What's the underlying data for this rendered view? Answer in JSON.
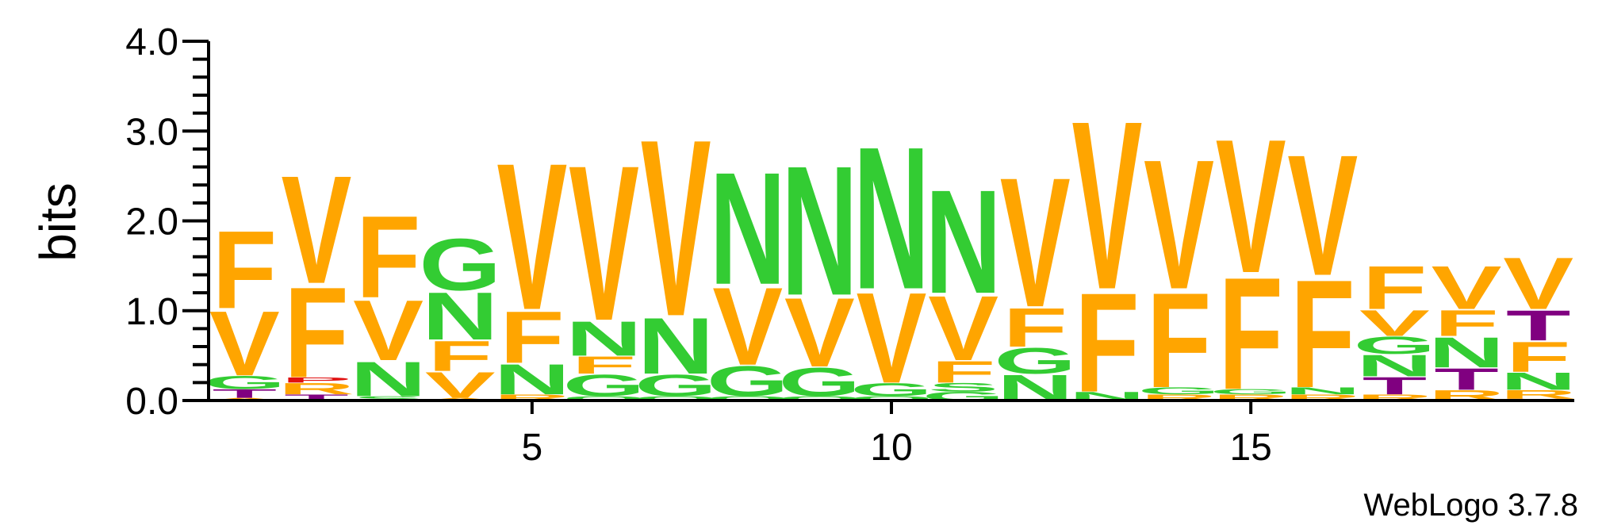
{
  "chart_data": {
    "type": "sequence-logo",
    "ylabel": "bits",
    "ylim": [
      0,
      4.0
    ],
    "y_ticks": [
      "0.0",
      "1.0",
      "2.0",
      "3.0",
      "4.0"
    ],
    "x_ticks": [
      "5",
      "10",
      "15"
    ],
    "x_tick_positions": [
      5,
      10,
      15
    ],
    "positions": 19,
    "credit": "WebLogo 3.7.8",
    "colors": {
      "F": "#FFA500",
      "V": "#FFA500",
      "A": "#FFA500",
      "R": "#FFA500",
      "N": "#33CC33",
      "G": "#33CC33",
      "S": "#33CC33",
      "Q": "#33CC33",
      "T": "#800080",
      "P": "#E01010",
      "X": "#E01010"
    },
    "columns": [
      {
        "position": 1,
        "letters": [
          {
            "aa": "A",
            "bits": 0.03
          },
          {
            "aa": "T",
            "bits": 0.1
          },
          {
            "aa": "G",
            "bits": 0.15
          },
          {
            "aa": "V",
            "bits": 0.75
          },
          {
            "aa": "F",
            "bits": 0.9
          }
        ]
      },
      {
        "position": 2,
        "letters": [
          {
            "aa": "T",
            "bits": 0.07
          },
          {
            "aa": "R",
            "bits": 0.13
          },
          {
            "aa": "P",
            "bits": 0.06
          },
          {
            "aa": "F",
            "bits": 1.05
          },
          {
            "aa": "V",
            "bits": 1.25
          }
        ]
      },
      {
        "position": 3,
        "letters": [
          {
            "aa": "S",
            "bits": 0.05
          },
          {
            "aa": "N",
            "bits": 0.4
          },
          {
            "aa": "V",
            "bits": 0.7
          },
          {
            "aa": "F",
            "bits": 0.95
          }
        ]
      },
      {
        "position": 4,
        "letters": [
          {
            "aa": "A",
            "bits": 0.03
          },
          {
            "aa": "V",
            "bits": 0.3
          },
          {
            "aa": "F",
            "bits": 0.35
          },
          {
            "aa": "N",
            "bits": 0.55
          },
          {
            "aa": "G",
            "bits": 0.6
          }
        ]
      },
      {
        "position": 5,
        "letters": [
          {
            "aa": "R",
            "bits": 0.07
          },
          {
            "aa": "N",
            "bits": 0.35
          },
          {
            "aa": "F",
            "bits": 0.6
          },
          {
            "aa": "V",
            "bits": 1.7
          }
        ]
      },
      {
        "position": 6,
        "letters": [
          {
            "aa": "Q",
            "bits": 0.05
          },
          {
            "aa": "G",
            "bits": 0.25
          },
          {
            "aa": "F",
            "bits": 0.2
          },
          {
            "aa": "N",
            "bits": 0.4
          },
          {
            "aa": "V",
            "bits": 1.8
          }
        ]
      },
      {
        "position": 7,
        "letters": [
          {
            "aa": "Q",
            "bits": 0.05
          },
          {
            "aa": "G",
            "bits": 0.25
          },
          {
            "aa": "N",
            "bits": 0.65
          },
          {
            "aa": "V",
            "bits": 2.05
          }
        ]
      },
      {
        "position": 8,
        "letters": [
          {
            "aa": "Q",
            "bits": 0.05
          },
          {
            "aa": "G",
            "bits": 0.35
          },
          {
            "aa": "V",
            "bits": 0.9
          },
          {
            "aa": "N",
            "bits": 1.3
          }
        ]
      },
      {
        "position": 9,
        "letters": [
          {
            "aa": "Q",
            "bits": 0.05
          },
          {
            "aa": "G",
            "bits": 0.33
          },
          {
            "aa": "V",
            "bits": 0.8
          },
          {
            "aa": "N",
            "bits": 1.5
          }
        ]
      },
      {
        "position": 10,
        "letters": [
          {
            "aa": "Q",
            "bits": 0.05
          },
          {
            "aa": "G",
            "bits": 0.15
          },
          {
            "aa": "V",
            "bits": 1.05
          },
          {
            "aa": "N",
            "bits": 1.65
          }
        ]
      },
      {
        "position": 11,
        "letters": [
          {
            "aa": "G",
            "bits": 0.1
          },
          {
            "aa": "S",
            "bits": 0.1
          },
          {
            "aa": "F",
            "bits": 0.25
          },
          {
            "aa": "V",
            "bits": 0.75
          },
          {
            "aa": "N",
            "bits": 1.2
          }
        ]
      },
      {
        "position": 12,
        "letters": [
          {
            "aa": "N",
            "bits": 0.3
          },
          {
            "aa": "G",
            "bits": 0.3
          },
          {
            "aa": "F",
            "bits": 0.45
          },
          {
            "aa": "V",
            "bits": 1.5
          }
        ]
      },
      {
        "position": 13,
        "letters": [
          {
            "aa": "N",
            "bits": 0.1
          },
          {
            "aa": "F",
            "bits": 1.15
          },
          {
            "aa": "V",
            "bits": 1.95
          }
        ]
      },
      {
        "position": 14,
        "letters": [
          {
            "aa": "R",
            "bits": 0.07
          },
          {
            "aa": "G",
            "bits": 0.08
          },
          {
            "aa": "F",
            "bits": 1.1
          },
          {
            "aa": "V",
            "bits": 1.5
          }
        ]
      },
      {
        "position": 15,
        "letters": [
          {
            "aa": "R",
            "bits": 0.07
          },
          {
            "aa": "G",
            "bits": 0.06
          },
          {
            "aa": "F",
            "bits": 1.3
          },
          {
            "aa": "V",
            "bits": 1.55
          }
        ]
      },
      {
        "position": 16,
        "letters": [
          {
            "aa": "R",
            "bits": 0.07
          },
          {
            "aa": "N",
            "bits": 0.08
          },
          {
            "aa": "F",
            "bits": 1.25
          },
          {
            "aa": "V",
            "bits": 1.4
          }
        ]
      },
      {
        "position": 17,
        "letters": [
          {
            "aa": "R",
            "bits": 0.07
          },
          {
            "aa": "T",
            "bits": 0.2
          },
          {
            "aa": "N",
            "bits": 0.25
          },
          {
            "aa": "G",
            "bits": 0.2
          },
          {
            "aa": "V",
            "bits": 0.3
          },
          {
            "aa": "F",
            "bits": 0.5
          }
        ]
      },
      {
        "position": 18,
        "letters": [
          {
            "aa": "R",
            "bits": 0.12
          },
          {
            "aa": "T",
            "bits": 0.25
          },
          {
            "aa": "N",
            "bits": 0.35
          },
          {
            "aa": "F",
            "bits": 0.3
          },
          {
            "aa": "V",
            "bits": 0.5
          }
        ]
      },
      {
        "position": 19,
        "letters": [
          {
            "aa": "X",
            "bits": 0.02
          },
          {
            "aa": "R",
            "bits": 0.1
          },
          {
            "aa": "N",
            "bits": 0.2
          },
          {
            "aa": "F",
            "bits": 0.35
          },
          {
            "aa": "T",
            "bits": 0.35
          },
          {
            "aa": "V",
            "bits": 0.6
          }
        ]
      }
    ]
  }
}
